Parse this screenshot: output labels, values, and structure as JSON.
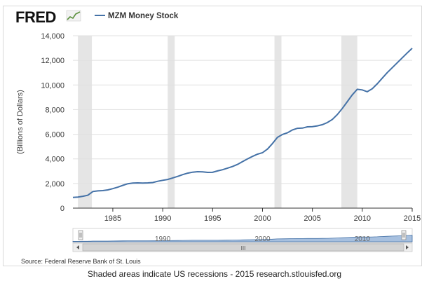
{
  "logo_text": "FRED",
  "chart_data": {
    "type": "line",
    "title": "MZM Money Stock",
    "ylabel": "(Billions of Dollars)",
    "xlabel": "",
    "ylim": [
      0,
      14000
    ],
    "xlim": [
      1981.0,
      2015.0
    ],
    "yticks": [
      0,
      2000,
      4000,
      6000,
      8000,
      10000,
      12000,
      14000
    ],
    "ytick_labels": [
      "0",
      "2,000",
      "4,000",
      "6,000",
      "8,000",
      "10,000",
      "12,000",
      "14,000"
    ],
    "xticks": [
      1985,
      1990,
      1995,
      2000,
      2005,
      2010,
      2015
    ],
    "xtick_labels": [
      "1985",
      "1990",
      "1995",
      "2000",
      "2005",
      "2010",
      "2015"
    ],
    "grid": true,
    "legend": "top-left",
    "series": [
      {
        "name": "MZM Money Stock",
        "color": "#4572a7",
        "x": [
          1981.0,
          1981.5,
          1982.0,
          1982.5,
          1983.0,
          1983.5,
          1984.0,
          1984.5,
          1985.0,
          1985.5,
          1986.0,
          1986.5,
          1987.0,
          1987.5,
          1988.0,
          1988.5,
          1989.0,
          1989.5,
          1990.0,
          1990.5,
          1991.0,
          1991.5,
          1992.0,
          1992.5,
          1993.0,
          1993.5,
          1994.0,
          1994.5,
          1995.0,
          1995.5,
          1996.0,
          1996.5,
          1997.0,
          1997.5,
          1998.0,
          1998.5,
          1999.0,
          1999.5,
          2000.0,
          2000.5,
          2001.0,
          2001.5,
          2002.0,
          2002.5,
          2003.0,
          2003.5,
          2004.0,
          2004.5,
          2005.0,
          2005.5,
          2006.0,
          2006.5,
          2007.0,
          2007.5,
          2008.0,
          2008.5,
          2009.0,
          2009.5,
          2010.0,
          2010.5,
          2011.0,
          2011.5,
          2012.0,
          2012.5,
          2013.0,
          2013.5,
          2014.0,
          2014.5,
          2015.0
        ],
        "values": [
          870,
          900,
          960,
          1050,
          1350,
          1400,
          1420,
          1480,
          1580,
          1700,
          1850,
          1980,
          2030,
          2050,
          2040,
          2050,
          2080,
          2180,
          2260,
          2330,
          2450,
          2580,
          2720,
          2840,
          2920,
          2960,
          2950,
          2900,
          2910,
          3020,
          3120,
          3250,
          3380,
          3550,
          3780,
          4000,
          4200,
          4380,
          4500,
          4800,
          5250,
          5750,
          5980,
          6120,
          6350,
          6480,
          6500,
          6600,
          6620,
          6680,
          6780,
          6950,
          7200,
          7600,
          8100,
          8650,
          9200,
          9650,
          9600,
          9450,
          9700,
          10100,
          10550,
          11000,
          11400,
          11800,
          12200,
          12600,
          12980
        ]
      }
    ],
    "recessions": [
      [
        1981.5,
        1982.9
      ],
      [
        1990.5,
        1991.2
      ],
      [
        2001.2,
        2001.9
      ],
      [
        2007.9,
        2009.5
      ]
    ],
    "navigator_labels": [
      "1990",
      "2000",
      "2010"
    ],
    "navigator_scroll_label": "III",
    "source": "Source: Federal Reserve Bank of St. Louis",
    "credit": "Shaded areas indicate US recessions - 2015 research.stlouisfed.org"
  }
}
